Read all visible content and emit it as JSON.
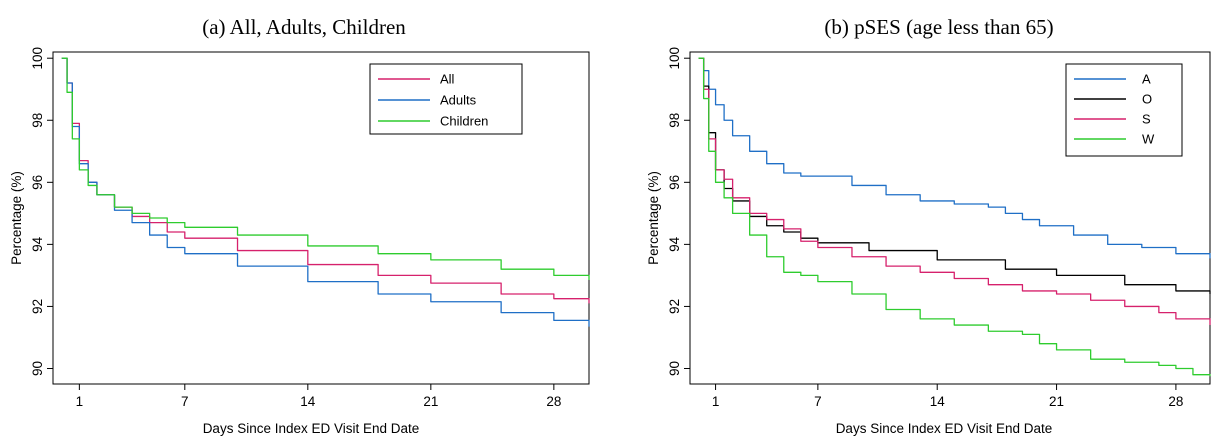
{
  "chart_data": [
    {
      "type": "line",
      "title": "(a) All, Adults, Children",
      "xlabel": "Days Since Index ED Visit End Date",
      "ylabel": "Percentage (%)",
      "xlim": [
        -0.5,
        30
      ],
      "ylim": [
        89.5,
        100.2
      ],
      "xticks": [
        1,
        7,
        14,
        21,
        28
      ],
      "yticks": [
        90,
        92,
        94,
        96,
        98,
        100
      ],
      "legend_position": "top-right",
      "series": [
        {
          "name": "All",
          "color": "#d6216c",
          "points": [
            [
              0,
              100
            ],
            [
              0.3,
              99.2
            ],
            [
              0.6,
              97.9
            ],
            [
              1,
              96.7
            ],
            [
              1.5,
              96
            ],
            [
              2,
              95.6
            ],
            [
              3,
              95.2
            ],
            [
              4,
              94.9
            ],
            [
              5,
              94.7
            ],
            [
              6,
              94.4
            ],
            [
              7,
              94.2
            ],
            [
              10,
              93.8
            ],
            [
              14,
              93.35
            ],
            [
              18,
              93
            ],
            [
              21,
              92.75
            ],
            [
              25,
              92.4
            ],
            [
              28,
              92.25
            ],
            [
              30,
              92.1
            ]
          ]
        },
        {
          "name": "Adults",
          "color": "#1f6fc6",
          "points": [
            [
              0,
              100
            ],
            [
              0.3,
              99.2
            ],
            [
              0.6,
              97.8
            ],
            [
              1,
              96.6
            ],
            [
              1.5,
              96
            ],
            [
              2,
              95.6
            ],
            [
              3,
              95.1
            ],
            [
              4,
              94.7
            ],
            [
              5,
              94.3
            ],
            [
              6,
              93.9
            ],
            [
              7,
              93.7
            ],
            [
              10,
              93.3
            ],
            [
              14,
              92.8
            ],
            [
              18,
              92.4
            ],
            [
              21,
              92.15
            ],
            [
              25,
              91.8
            ],
            [
              28,
              91.55
            ],
            [
              30,
              91.35
            ]
          ]
        },
        {
          "name": "Children",
          "color": "#2ecc2e",
          "points": [
            [
              0,
              100
            ],
            [
              0.3,
              98.9
            ],
            [
              0.6,
              97.4
            ],
            [
              1,
              96.4
            ],
            [
              1.5,
              95.9
            ],
            [
              2,
              95.6
            ],
            [
              3,
              95.2
            ],
            [
              4,
              95
            ],
            [
              5,
              94.85
            ],
            [
              6,
              94.7
            ],
            [
              7,
              94.55
            ],
            [
              10,
              94.3
            ],
            [
              14,
              93.95
            ],
            [
              18,
              93.7
            ],
            [
              21,
              93.5
            ],
            [
              25,
              93.2
            ],
            [
              28,
              93
            ],
            [
              30,
              92.85
            ]
          ]
        }
      ]
    },
    {
      "type": "line",
      "title": "(b) pSES (age less than 65)",
      "xlabel": "Days Since Index ED Visit End Date",
      "ylabel": "Percentage (%)",
      "xlim": [
        -0.5,
        30
      ],
      "ylim": [
        89.5,
        100.2
      ],
      "xticks": [
        1,
        7,
        14,
        21,
        28
      ],
      "yticks": [
        90,
        92,
        94,
        96,
        98,
        100
      ],
      "legend_position": "top-right",
      "series": [
        {
          "name": "A",
          "color": "#1f6fc6",
          "points": [
            [
              0,
              100
            ],
            [
              0.3,
              99.6
            ],
            [
              0.6,
              99
            ],
            [
              1,
              98.5
            ],
            [
              1.5,
              98
            ],
            [
              2,
              97.5
            ],
            [
              3,
              97
            ],
            [
              4,
              96.6
            ],
            [
              5,
              96.3
            ],
            [
              6,
              96.2
            ],
            [
              7,
              96.2
            ],
            [
              9,
              95.9
            ],
            [
              11,
              95.6
            ],
            [
              13,
              95.4
            ],
            [
              15,
              95.3
            ],
            [
              17,
              95.2
            ],
            [
              18,
              95
            ],
            [
              19,
              94.8
            ],
            [
              20,
              94.6
            ],
            [
              22,
              94.3
            ],
            [
              24,
              94
            ],
            [
              26,
              93.9
            ],
            [
              28,
              93.7
            ],
            [
              30,
              93.55
            ]
          ]
        },
        {
          "name": "O",
          "color": "#000000",
          "points": [
            [
              0,
              100
            ],
            [
              0.3,
              99.1
            ],
            [
              0.6,
              97.6
            ],
            [
              1,
              96.4
            ],
            [
              1.5,
              95.8
            ],
            [
              2,
              95.4
            ],
            [
              3,
              94.9
            ],
            [
              4,
              94.6
            ],
            [
              5,
              94.4
            ],
            [
              6,
              94.2
            ],
            [
              7,
              94.05
            ],
            [
              10,
              93.8
            ],
            [
              14,
              93.5
            ],
            [
              18,
              93.2
            ],
            [
              21,
              93
            ],
            [
              25,
              92.7
            ],
            [
              28,
              92.5
            ],
            [
              30,
              92.4
            ]
          ]
        },
        {
          "name": "S",
          "color": "#d6216c",
          "points": [
            [
              0,
              100
            ],
            [
              0.3,
              99
            ],
            [
              0.6,
              97.4
            ],
            [
              1,
              96.4
            ],
            [
              1.5,
              96.1
            ],
            [
              2,
              95.5
            ],
            [
              3,
              95
            ],
            [
              4,
              94.8
            ],
            [
              5,
              94.5
            ],
            [
              6,
              94.1
            ],
            [
              7,
              93.9
            ],
            [
              9,
              93.6
            ],
            [
              11,
              93.3
            ],
            [
              13,
              93.1
            ],
            [
              15,
              92.9
            ],
            [
              17,
              92.7
            ],
            [
              19,
              92.5
            ],
            [
              21,
              92.4
            ],
            [
              23,
              92.2
            ],
            [
              25,
              92
            ],
            [
              27,
              91.8
            ],
            [
              28,
              91.6
            ],
            [
              30,
              91.4
            ]
          ]
        },
        {
          "name": "W",
          "color": "#2ecc2e",
          "points": [
            [
              0,
              100
            ],
            [
              0.3,
              98.7
            ],
            [
              0.6,
              97
            ],
            [
              1,
              96
            ],
            [
              1.5,
              95.5
            ],
            [
              2,
              95
            ],
            [
              3,
              94.3
            ],
            [
              4,
              93.6
            ],
            [
              5,
              93.1
            ],
            [
              6,
              93
            ],
            [
              7,
              92.8
            ],
            [
              9,
              92.4
            ],
            [
              11,
              91.9
            ],
            [
              13,
              91.6
            ],
            [
              15,
              91.4
            ],
            [
              17,
              91.2
            ],
            [
              19,
              91.1
            ],
            [
              20,
              90.8
            ],
            [
              21,
              90.6
            ],
            [
              23,
              90.3
            ],
            [
              25,
              90.2
            ],
            [
              27,
              90.1
            ],
            [
              28,
              90
            ],
            [
              29,
              89.8
            ],
            [
              30,
              89.75
            ]
          ]
        }
      ]
    }
  ]
}
